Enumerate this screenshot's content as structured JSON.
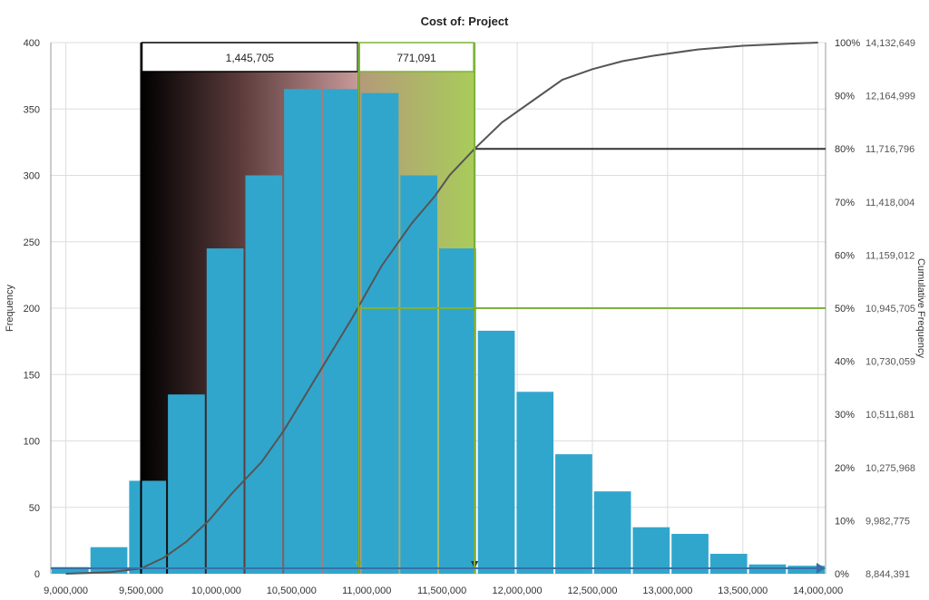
{
  "chart_data": {
    "type": "bar",
    "title": "Cost of: Project",
    "ylabel": "Frequency",
    "y2label": "Cumulative Frequency",
    "xlim": [
      8900000,
      14050000
    ],
    "ylim": [
      0,
      400
    ],
    "grid": true,
    "x_ticks": [
      "9,000,000",
      "9,500,000",
      "10,000,000",
      "10,500,000",
      "11,000,000",
      "11,500,000",
      "12,000,000",
      "12,500,000",
      "13,000,000",
      "13,500,000",
      "14,000,000"
    ],
    "x_tick_values": [
      9000000,
      9500000,
      10000000,
      10500000,
      11000000,
      11500000,
      12000000,
      12500000,
      13000000,
      13500000,
      14000000
    ],
    "y_ticks": [
      0,
      50,
      100,
      150,
      200,
      250,
      300,
      350,
      400
    ],
    "bin_width": 257500,
    "bin_starts": [
      8900000,
      9157500,
      9415000,
      9672500,
      9930000,
      10187500,
      10445000,
      10702500,
      10960000,
      11217500,
      11475000,
      11732500,
      11990000,
      12247500,
      12505000,
      12762500,
      13020000,
      13277500,
      13535000,
      13792500
    ],
    "values": [
      5,
      20,
      70,
      135,
      245,
      300,
      365,
      365,
      362,
      300,
      245,
      183,
      137,
      90,
      62,
      35,
      30,
      15,
      7,
      6
    ],
    "cumulative": {
      "percent_ticks": [
        "0%",
        "10%",
        "20%",
        "30%",
        "40%",
        "50%",
        "60%",
        "70%",
        "80%",
        "90%",
        "100%"
      ],
      "value_ticks": [
        "8,844,391",
        "9,982,775",
        "10,275,968",
        "10,511,681",
        "10,730,059",
        "10,945,705",
        "11,159,012",
        "11,418,004",
        "11,716,796",
        "12,164,999",
        "14,132,649"
      ],
      "x": [
        9000000,
        9300000,
        9500000,
        9650000,
        9800000,
        9950000,
        10100000,
        10300000,
        10450000,
        10600000,
        10750000,
        10900000,
        11000000,
        11100000,
        11300000,
        11450000,
        11550000,
        11716796,
        11900000,
        12100000,
        12300000,
        12500000,
        12700000,
        12900000,
        13200000,
        13500000,
        13800000,
        14000000
      ],
      "y": [
        0,
        0.3,
        1,
        3,
        6,
        10,
        15,
        21,
        27,
        34,
        41,
        48,
        53,
        58,
        66,
        71,
        75,
        80,
        85,
        89,
        93,
        95,
        96.5,
        97.5,
        98.7,
        99.4,
        99.8,
        100
      ]
    },
    "annotations": [
      {
        "label": "1,445,705",
        "from": 9500000,
        "to": 10945705,
        "style": "black-to-pink"
      },
      {
        "label": "771,091",
        "from": 10945705,
        "to": 11716796,
        "style": "green"
      }
    ],
    "reference_lines": [
      {
        "percent": 50,
        "x": 10945705,
        "color": "#7db33a"
      },
      {
        "percent": 80,
        "x": 11716796,
        "color": "#333333"
      }
    ],
    "colors": {
      "bar": "#31a6cc",
      "bar_stroke": "#ffffff",
      "curve": "#555555",
      "green": "#7db33a",
      "grid": "#dddddd"
    }
  }
}
